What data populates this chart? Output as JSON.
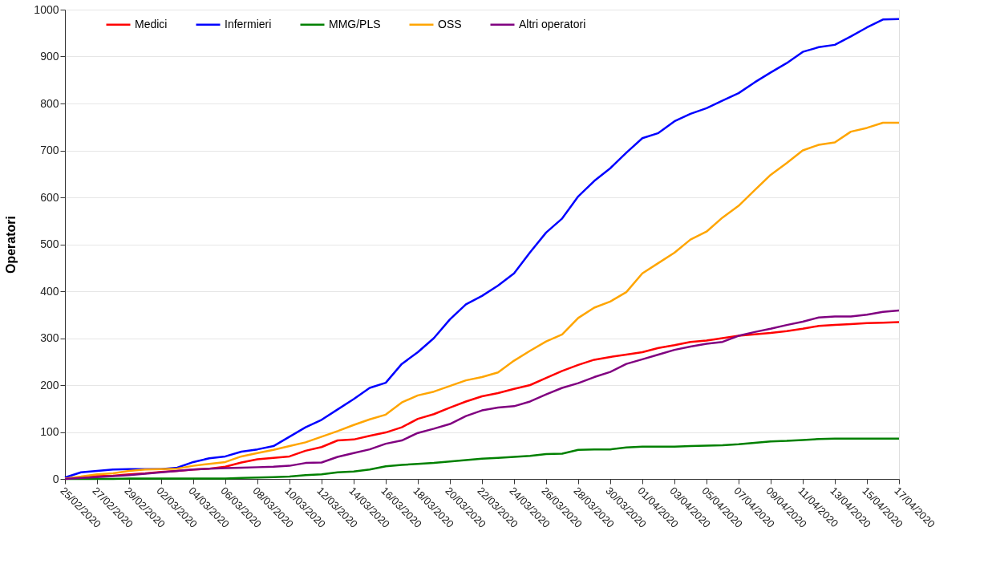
{
  "chart_data": {
    "type": "line",
    "ylabel": "Operatori",
    "x": [
      "2020-02-25",
      "2020-02-26",
      "2020-02-27",
      "2020-02-28",
      "2020-02-29",
      "2020-03-01",
      "2020-03-02",
      "2020-03-03",
      "2020-03-04",
      "2020-03-05",
      "2020-03-06",
      "2020-03-07",
      "2020-03-08",
      "2020-03-09",
      "2020-03-10",
      "2020-03-11",
      "2020-03-12",
      "2020-03-13",
      "2020-03-14",
      "2020-03-15",
      "2020-03-16",
      "2020-03-17",
      "2020-03-18",
      "2020-03-19",
      "2020-03-20",
      "2020-03-21",
      "2020-03-22",
      "2020-03-23",
      "2020-03-24",
      "2020-03-25",
      "2020-03-26",
      "2020-03-27",
      "2020-03-28",
      "2020-03-29",
      "2020-03-30",
      "2020-03-31",
      "2020-04-01",
      "2020-04-02",
      "2020-04-03",
      "2020-04-04",
      "2020-04-05",
      "2020-04-06",
      "2020-04-07",
      "2020-04-08",
      "2020-04-09",
      "2020-04-10",
      "2020-04-11",
      "2020-04-12",
      "2020-04-13",
      "2020-04-14",
      "2020-04-15",
      "2020-04-16",
      "2020-04-17"
    ],
    "series": [
      {
        "name": "Medici",
        "color": "#ff0000",
        "values": [
          0,
          3,
          6,
          7,
          10,
          12,
          15,
          17,
          20,
          22,
          26,
          35,
          42,
          45,
          48,
          60,
          68,
          82,
          84,
          92,
          99,
          110,
          128,
          138,
          152,
          165,
          176,
          183,
          192,
          200,
          215,
          230,
          243,
          254,
          260,
          265,
          270,
          279,
          285,
          292,
          295,
          300,
          305,
          308,
          311,
          315,
          320,
          326,
          328,
          330,
          332,
          333,
          334
        ]
      },
      {
        "name": "Infermieri",
        "color": "#0000ff",
        "values": [
          3,
          14,
          17,
          20,
          21,
          21,
          21,
          24,
          36,
          44,
          48,
          58,
          63,
          70,
          90,
          110,
          126,
          148,
          170,
          194,
          205,
          245,
          270,
          300,
          340,
          372,
          390,
          412,
          438,
          483,
          525,
          555,
          602,
          635,
          662,
          695,
          726,
          737,
          762,
          778,
          790,
          806,
          822,
          845,
          866,
          886,
          910,
          920,
          925,
          943,
          962,
          979,
          980
        ]
      },
      {
        "name": "MMG/PLS",
        "color": "#008000",
        "values": [
          0,
          0,
          0,
          0,
          1,
          1,
          1,
          1,
          1,
          1,
          1,
          2,
          3,
          4,
          5,
          8,
          10,
          14,
          16,
          20,
          27,
          30,
          32,
          34,
          37,
          40,
          43,
          45,
          47,
          49,
          53,
          54,
          62,
          63,
          63,
          67,
          69,
          69,
          69,
          70,
          71,
          72,
          74,
          77,
          80,
          81,
          83,
          85,
          86,
          86,
          86,
          86,
          86
        ]
      },
      {
        "name": "OSS",
        "color": "#ffa500",
        "values": [
          1,
          5,
          10,
          12,
          17,
          20,
          21,
          22,
          28,
          32,
          36,
          48,
          55,
          62,
          70,
          78,
          90,
          102,
          115,
          127,
          137,
          163,
          178,
          186,
          198,
          210,
          217,
          227,
          252,
          273,
          293,
          308,
          343,
          365,
          378,
          398,
          438,
          460,
          482,
          510,
          527,
          557,
          582,
          615,
          648,
          673,
          700,
          712,
          717,
          740,
          748,
          759,
          759
        ]
      },
      {
        "name": "Altri operatori",
        "color": "#800080",
        "values": [
          0,
          2,
          4,
          6,
          8,
          11,
          14,
          17,
          20,
          22,
          23,
          24,
          25,
          26,
          28,
          34,
          35,
          47,
          55,
          63,
          75,
          82,
          98,
          107,
          117,
          134,
          146,
          152,
          155,
          165,
          180,
          194,
          204,
          217,
          228,
          245,
          255,
          265,
          275,
          282,
          288,
          292,
          305,
          313,
          320,
          328,
          335,
          344,
          346,
          346,
          350,
          356,
          359
        ]
      }
    ],
    "xlim": [
      "2020-02-25",
      "2020-04-17"
    ],
    "xticks": [
      {
        "value": "2020-02-25",
        "label": "25/02/2020"
      },
      {
        "value": "2020-02-27",
        "label": "27/02/2020"
      },
      {
        "value": "2020-02-29",
        "label": "29/02/2020"
      },
      {
        "value": "2020-03-02",
        "label": "02/03/2020"
      },
      {
        "value": "2020-03-04",
        "label": "04/03/2020"
      },
      {
        "value": "2020-03-06",
        "label": "06/03/2020"
      },
      {
        "value": "2020-03-08",
        "label": "08/03/2020"
      },
      {
        "value": "2020-03-10",
        "label": "10/03/2020"
      },
      {
        "value": "2020-03-12",
        "label": "12/03/2020"
      },
      {
        "value": "2020-03-14",
        "label": "14/03/2020"
      },
      {
        "value": "2020-03-16",
        "label": "16/03/2020"
      },
      {
        "value": "2020-03-18",
        "label": "18/03/2020"
      },
      {
        "value": "2020-03-20",
        "label": "20/03/2020"
      },
      {
        "value": "2020-03-22",
        "label": "22/03/2020"
      },
      {
        "value": "2020-03-24",
        "label": "24/03/2020"
      },
      {
        "value": "2020-03-26",
        "label": "26/03/2020"
      },
      {
        "value": "2020-03-28",
        "label": "28/03/2020"
      },
      {
        "value": "2020-03-30",
        "label": "30/03/2020"
      },
      {
        "value": "2020-04-01",
        "label": "01/04/2020"
      },
      {
        "value": "2020-04-03",
        "label": "03/04/2020"
      },
      {
        "value": "2020-04-05",
        "label": "05/04/2020"
      },
      {
        "value": "2020-04-07",
        "label": "07/04/2020"
      },
      {
        "value": "2020-04-09",
        "label": "09/04/2020"
      },
      {
        "value": "2020-04-11",
        "label": "11/04/2020"
      },
      {
        "value": "2020-04-13",
        "label": "13/04/2020"
      },
      {
        "value": "2020-04-15",
        "label": "15/04/2020"
      },
      {
        "value": "2020-04-17",
        "label": "17/04/2020"
      }
    ],
    "ylim": [
      0,
      1000
    ],
    "yticks": [
      0,
      100,
      200,
      300,
      400,
      500,
      600,
      700,
      800,
      900,
      1000
    ],
    "grid": "y",
    "legend": "top",
    "line_style": "solid",
    "marker": "none"
  }
}
